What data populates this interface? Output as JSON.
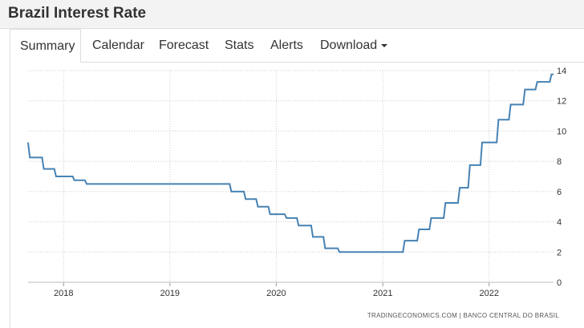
{
  "page": {
    "title": "Brazil Interest Rate"
  },
  "tabs": [
    {
      "label": "Summary",
      "active": true
    },
    {
      "label": "Calendar"
    },
    {
      "label": "Forecast"
    },
    {
      "label": "Stats"
    },
    {
      "label": "Alerts"
    },
    {
      "label": "Download",
      "has_dropdown": true
    }
  ],
  "source": "TRADINGECONOMICS.COM  |  BANCO CENTRAL DO BRASIL",
  "colors": {
    "line": "#4682b4",
    "grid": "#cccccc",
    "header_bg": "#f3f3f3"
  },
  "chart_data": {
    "type": "line",
    "x_axis": {
      "ticks": [
        "2018",
        "2019",
        "2020",
        "2021",
        "2022"
      ],
      "range": [
        "2017-09-01",
        "2022-08-10"
      ]
    },
    "y_axis": {
      "ticks": [
        0,
        2,
        4,
        6,
        8,
        10,
        12,
        14
      ],
      "range": [
        0,
        14
      ],
      "position": "right"
    },
    "grid": true,
    "legend": "none",
    "series": [
      {
        "step": true,
        "points": [
          [
            "2017-09-01",
            9.25
          ],
          [
            "2017-09-07",
            8.25
          ],
          [
            "2017-10-25",
            7.5
          ],
          [
            "2017-12-06",
            7.0
          ],
          [
            "2018-02-07",
            6.75
          ],
          [
            "2018-03-21",
            6.5
          ],
          [
            "2019-07-31",
            6.0
          ],
          [
            "2019-09-18",
            5.5
          ],
          [
            "2019-10-30",
            5.0
          ],
          [
            "2019-12-11",
            4.5
          ],
          [
            "2020-02-05",
            4.25
          ],
          [
            "2020-03-18",
            3.75
          ],
          [
            "2020-05-06",
            3.0
          ],
          [
            "2020-06-17",
            2.25
          ],
          [
            "2020-08-05",
            2.0
          ],
          [
            "2021-03-17",
            2.75
          ],
          [
            "2021-05-05",
            3.5
          ],
          [
            "2021-06-16",
            4.25
          ],
          [
            "2021-08-04",
            5.25
          ],
          [
            "2021-09-22",
            6.25
          ],
          [
            "2021-10-27",
            7.75
          ],
          [
            "2021-12-08",
            9.25
          ],
          [
            "2022-02-02",
            10.75
          ],
          [
            "2022-03-16",
            11.75
          ],
          [
            "2022-05-04",
            12.75
          ],
          [
            "2022-06-15",
            13.25
          ],
          [
            "2022-08-03",
            13.75
          ],
          [
            "2022-08-10",
            13.75
          ]
        ]
      }
    ]
  }
}
